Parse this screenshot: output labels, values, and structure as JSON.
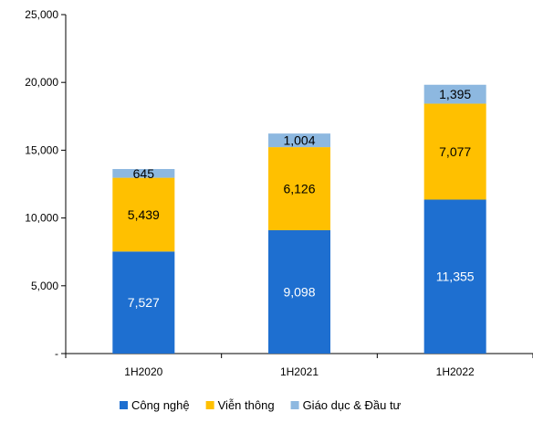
{
  "chart_data": {
    "type": "bar",
    "stacked": true,
    "categories": [
      "1H2020",
      "1H2021",
      "1H2022"
    ],
    "series": [
      {
        "name": "Công nghệ",
        "values": [
          7527,
          9098,
          11355
        ],
        "labels": [
          "7,527",
          "9,098",
          "11,355"
        ],
        "color": "#1E6FD0",
        "label_color": "#ffffff"
      },
      {
        "name": "Viễn thông",
        "values": [
          5439,
          6126,
          7077
        ],
        "labels": [
          "5,439",
          "6,126",
          "7,077"
        ],
        "color": "#FFC000",
        "label_color": "#000000"
      },
      {
        "name": "Giáo dục & Đầu tư",
        "values": [
          645,
          1004,
          1395
        ],
        "labels": [
          "645",
          "1,004",
          "1,395"
        ],
        "color": "#8DB8E0",
        "label_color": "#000000"
      }
    ],
    "ylim": [
      0,
      25000
    ],
    "yticks": [
      0,
      5000,
      10000,
      15000,
      20000,
      25000
    ],
    "ytick_labels": [
      "-",
      "5,000",
      "10,000",
      "15,000",
      "20,000",
      "25,000"
    ],
    "grid": false,
    "legend_position": "bottom"
  }
}
